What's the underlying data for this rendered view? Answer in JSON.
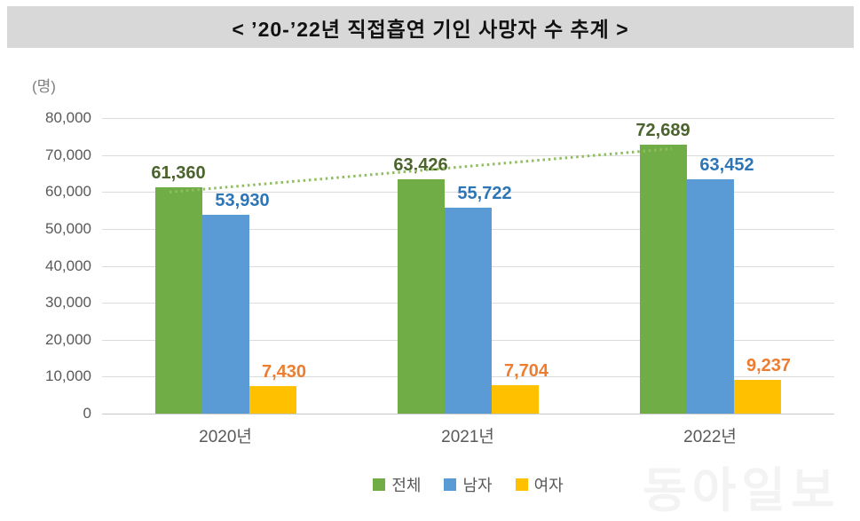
{
  "title": "< ’20-’22년 직접흡연 기인 사망자 수 추계 >",
  "unit_label": "(명)",
  "watermark": "동아일보",
  "chart_data": {
    "type": "bar",
    "title": "’20-’22년 직접흡연 기인 사망자 수 추계",
    "unit": "(명)",
    "categories": [
      "2020년",
      "2021년",
      "2022년"
    ],
    "series": [
      {
        "name": "전체",
        "slug": "total",
        "color": "#70AD47",
        "label_color": "#4B632C",
        "values": [
          61360,
          63426,
          72689
        ],
        "value_labels": [
          "61,360",
          "63,426",
          "72,689"
        ]
      },
      {
        "name": "남자",
        "slug": "male",
        "color": "#5B9BD5",
        "label_color": "#2E75B6",
        "values": [
          53930,
          55722,
          63452
        ],
        "value_labels": [
          "53,930",
          "55,722",
          "63,452"
        ]
      },
      {
        "name": "여자",
        "slug": "female",
        "color": "#FFC000",
        "label_color": "#ED7D31",
        "values": [
          7430,
          7704,
          9237
        ],
        "value_labels": [
          "7,430",
          "7,704",
          "9,237"
        ]
      }
    ],
    "ylabel": "(명)",
    "ylim": [
      0,
      80000
    ],
    "ytick_step": 10000,
    "ytick_labels": [
      "0",
      "10,000",
      "20,000",
      "30,000",
      "40,000",
      "50,000",
      "60,000",
      "70,000",
      "80,000"
    ],
    "grid": true,
    "legend_position": "bottom",
    "trendline": {
      "on_series": "전체",
      "style": "dotted",
      "color": "#8FBE5F"
    }
  }
}
